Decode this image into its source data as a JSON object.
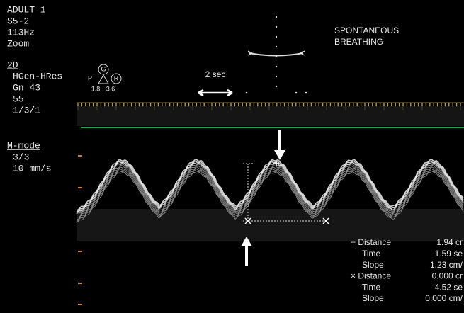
{
  "header": {
    "lines": [
      "ADULT 1",
      "S5-2",
      "113Hz",
      "Zoom"
    ]
  },
  "mode_2d": {
    "title": "2D",
    "lines": [
      "HGen-HRes",
      "Gn 43",
      "55",
      "1/3/1"
    ]
  },
  "icon": {
    "labels": [
      "P",
      "G",
      "R",
      "1.8",
      "3.6"
    ]
  },
  "scale": {
    "label": "2 sec"
  },
  "annotation": {
    "lines": [
      "SPONTANEOUS",
      "BREATHING"
    ]
  },
  "mmode": {
    "title": "M-mode",
    "lines": [
      "3/3",
      "10 mm/s"
    ]
  },
  "measurements": {
    "rows": [
      [
        "+ Distance",
        "1.94 cr"
      ],
      [
        "Time",
        "1.59 se"
      ],
      [
        "Slope",
        "1.23 cm/"
      ],
      [
        "× Distance",
        "0.000 cr"
      ],
      [
        "Time",
        "4.52 se"
      ],
      [
        "Slope",
        "0.000 cm/"
      ]
    ]
  }
}
